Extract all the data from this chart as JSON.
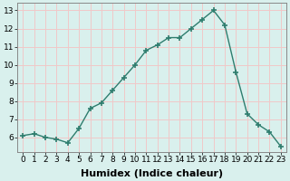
{
  "x": [
    0,
    1,
    2,
    3,
    4,
    5,
    6,
    7,
    8,
    9,
    10,
    11,
    12,
    13,
    14,
    15,
    16,
    17,
    18,
    19,
    20,
    21,
    22,
    23
  ],
  "y": [
    6.1,
    6.2,
    6.0,
    5.9,
    5.7,
    6.5,
    7.6,
    7.9,
    8.6,
    9.3,
    10.0,
    10.8,
    11.1,
    11.5,
    11.5,
    12.0,
    12.5,
    13.0,
    12.2,
    9.6,
    7.3,
    6.7,
    6.3,
    5.5
  ],
  "line_color": "#2e7d6e",
  "marker": "+",
  "markersize": 5,
  "markeredgewidth": 1.2,
  "linewidth": 1.0,
  "linestyle": "-",
  "xlabel": "Humidex (Indice chaleur)",
  "xlabel_fontsize": 8,
  "ylim": [
    5.2,
    13.4
  ],
  "xlim": [
    -0.5,
    23.5
  ],
  "yticks": [
    6,
    7,
    8,
    9,
    10,
    11,
    12,
    13
  ],
  "xticks": [
    0,
    1,
    2,
    3,
    4,
    5,
    6,
    7,
    8,
    9,
    10,
    11,
    12,
    13,
    14,
    15,
    16,
    17,
    18,
    19,
    20,
    21,
    22,
    23
  ],
  "xtick_labels": [
    "0",
    "1",
    "2",
    "3",
    "4",
    "5",
    "6",
    "7",
    "8",
    "9",
    "10",
    "11",
    "12",
    "13",
    "14",
    "15",
    "16",
    "17",
    "18",
    "19",
    "20",
    "21",
    "22",
    "23"
  ],
  "ytick_labels": [
    "6",
    "7",
    "8",
    "9",
    "10",
    "11",
    "12",
    "13"
  ],
  "background_color": "#d9f0ed",
  "grid_color": "#f0c8c8",
  "tick_fontsize": 6.5,
  "fig_bg": "#d9f0ed"
}
